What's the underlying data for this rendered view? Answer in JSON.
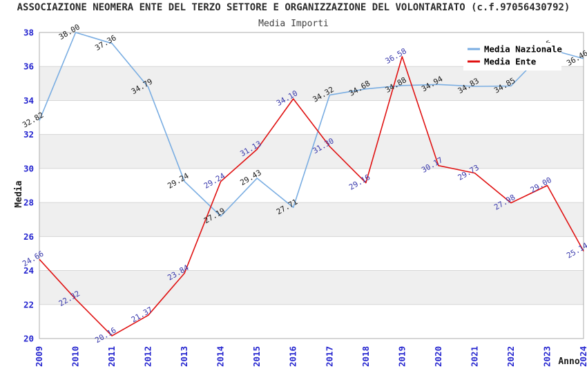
{
  "header": {
    "title": "ASSOCIAZIONE NEOMERA ENTE DEL TERZO SETTORE E ORGANIZZAZIONE DEL VOLONTARIATO (c.f.97056430792)",
    "subtitle": "Media Importi"
  },
  "chart_data": {
    "type": "line",
    "categories": [
      "2009",
      "2010",
      "2011",
      "2012",
      "2013",
      "2014",
      "2015",
      "2016",
      "2017",
      "2018",
      "2019",
      "2020",
      "2021",
      "2022",
      "2023",
      "2024"
    ],
    "series": [
      {
        "name": "Media Nazionale",
        "color": "#79ade2",
        "label_color": "#1a1a1a",
        "values": [
          32.82,
          38.0,
          37.36,
          34.79,
          29.24,
          27.19,
          29.43,
          27.71,
          34.32,
          34.68,
          34.88,
          34.94,
          34.83,
          34.85,
          37.05,
          36.46
        ]
      },
      {
        "name": "Media Ente",
        "color": "#e01111",
        "label_color": "#3939ac",
        "values": [
          24.66,
          22.32,
          20.16,
          21.37,
          23.84,
          29.24,
          31.13,
          34.1,
          31.3,
          29.16,
          36.58,
          30.17,
          29.73,
          27.98,
          29.0,
          25.14
        ]
      }
    ],
    "xlabel": "Anno",
    "ylabel": "Media",
    "ylim": [
      20,
      38
    ],
    "ytick_step": 2,
    "legend": {
      "position": "top-right",
      "entries": [
        "Media Nazionale",
        "Media Ente"
      ]
    },
    "grid": true,
    "styles": {
      "tick_color": "#2424cf",
      "band_color": "#efefef",
      "grid_color": "#d6d6d6",
      "border_color": "#adadad",
      "background": "#ffffff",
      "title_color": "#2b2b2b",
      "legend_text_color": "#000000"
    }
  }
}
